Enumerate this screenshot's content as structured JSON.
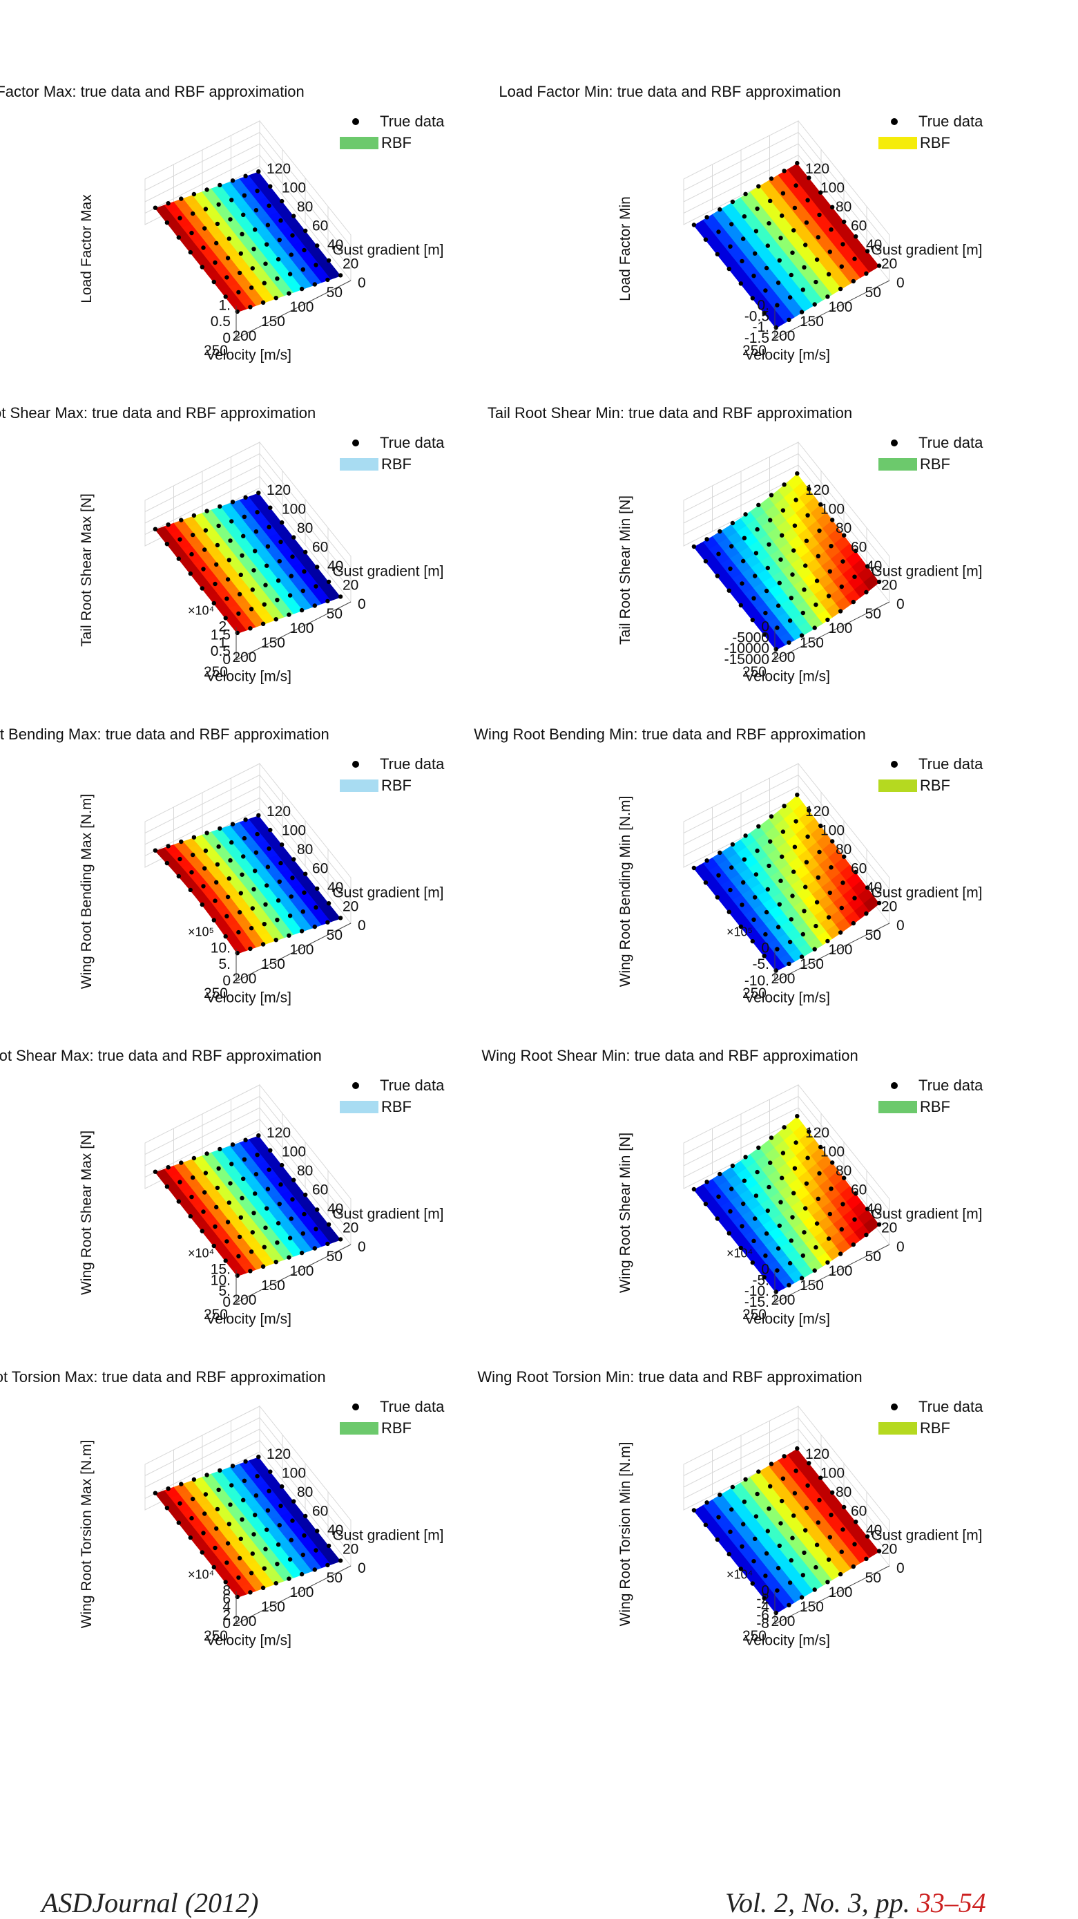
{
  "chart_data": [
    {
      "type": "surface3d",
      "title": "Load Factor Max: true data and RBF approximation",
      "zlabel": "Load Factor Max",
      "zticks": [
        "1.",
        "0.5",
        "0"
      ],
      "exponent": "",
      "zlim": [
        0,
        1.2
      ],
      "xlabel": "Velocity [m/s]",
      "xticks": [
        "250",
        "200",
        "150",
        "100",
        "50"
      ],
      "ylabel": "Gust gradient [m]",
      "yticks": [
        "0",
        "20",
        "40",
        "60",
        "80",
        "100",
        "120"
      ],
      "legend": {
        "true_data": "True data",
        "rbf": "RBF",
        "rbf_color": "#6cc96c"
      },
      "colormap": "max",
      "shape": "flat"
    },
    {
      "type": "surface3d",
      "title": "Load Factor Min: true data and RBF approximation",
      "zlabel": "Load Factor Min",
      "zticks": [
        "0.",
        "-0.5",
        "-1.",
        "-1.5"
      ],
      "exponent": "",
      "zlim": [
        -1.5,
        0
      ],
      "xlabel": "Velocity [m/s]",
      "xticks": [
        "250",
        "200",
        "150",
        "100",
        "50"
      ],
      "ylabel": "Gust gradient [m]",
      "yticks": [
        "0",
        "20",
        "40",
        "60",
        "80",
        "100",
        "120"
      ],
      "legend": {
        "true_data": "True data",
        "rbf": "RBF",
        "rbf_color": "#f5ec0a"
      },
      "colormap": "min",
      "shape": "flat"
    },
    {
      "type": "surface3d",
      "title": "Tail Root Shear Max: true data and RBF approximation",
      "zlabel": "Tail Root Shear Max [N]",
      "zticks": [
        "2.",
        "1.5",
        "1.",
        "0.5",
        "0"
      ],
      "exponent": "×10⁴",
      "zlim": [
        0,
        20000
      ],
      "xlabel": "Velocity [m/s]",
      "xticks": [
        "250",
        "200",
        "150",
        "100",
        "50"
      ],
      "ylabel": "Gust gradient [m]",
      "yticks": [
        "0",
        "20",
        "40",
        "60",
        "80",
        "100",
        "120"
      ],
      "legend": {
        "true_data": "True data",
        "rbf": "RBF",
        "rbf_color": "#a8dcf2"
      },
      "colormap": "max",
      "shape": "flat"
    },
    {
      "type": "surface3d",
      "title": "Tail Root Shear Min: true data and RBF approximation",
      "zlabel": "Tail Root Shear Min [N]",
      "zticks": [
        "0",
        "-5000",
        "-10000",
        "-15000"
      ],
      "exponent": "",
      "zlim": [
        -15000,
        0
      ],
      "xlabel": "Velocity [m/s]",
      "xticks": [
        "250",
        "200",
        "150",
        "100",
        "50"
      ],
      "ylabel": "Gust gradient [m]",
      "yticks": [
        "0",
        "20",
        "40",
        "60",
        "80",
        "100",
        "120"
      ],
      "legend": {
        "true_data": "True data",
        "rbf": "RBF",
        "rbf_color": "#6cc96c"
      },
      "colormap": "min",
      "shape": "curved"
    },
    {
      "type": "surface3d",
      "title": "Wing Root Bending Max: true data and RBF approximation",
      "zlabel": "Wing Root Bending Max [N.m]",
      "zticks": [
        "10.",
        "5.",
        "0"
      ],
      "exponent": "×10⁵",
      "zlim": [
        0,
        1000000
      ],
      "xlabel": "Velocity [m/s]",
      "xticks": [
        "250",
        "200",
        "150",
        "100",
        "50"
      ],
      "ylabel": "Gust gradient [m]",
      "yticks": [
        "0",
        "20",
        "40",
        "60",
        "80",
        "100",
        "120"
      ],
      "legend": {
        "true_data": "True data",
        "rbf": "RBF",
        "rbf_color": "#a8dcf2"
      },
      "colormap": "max",
      "shape": "curved"
    },
    {
      "type": "surface3d",
      "title": "Wing Root Bending Min: true data and RBF approximation",
      "zlabel": "Wing Root Bending Min [N.m]",
      "zticks": [
        "0",
        "-5.",
        "-10."
      ],
      "exponent": "×10⁵",
      "zlim": [
        -1000000,
        0
      ],
      "xlabel": "Velocity [m/s]",
      "xticks": [
        "250",
        "200",
        "150",
        "100",
        "50"
      ],
      "ylabel": "Gust gradient [m]",
      "yticks": [
        "0",
        "20",
        "40",
        "60",
        "80",
        "100",
        "120"
      ],
      "legend": {
        "true_data": "True data",
        "rbf": "RBF",
        "rbf_color": "#b5d920"
      },
      "colormap": "min",
      "shape": "curved"
    },
    {
      "type": "surface3d",
      "title": "Wing Root Shear Max: true data and RBF approximation",
      "zlabel": "Wing Root Shear Max [N]",
      "zticks": [
        "15.",
        "10.",
        "5.",
        "0"
      ],
      "exponent": "×10⁴",
      "zlim": [
        0,
        150000
      ],
      "xlabel": "Velocity [m/s]",
      "xticks": [
        "250",
        "200",
        "150",
        "100",
        "50"
      ],
      "ylabel": "Gust gradient [m]",
      "yticks": [
        "0",
        "20",
        "40",
        "60",
        "80",
        "100",
        "120"
      ],
      "legend": {
        "true_data": "True data",
        "rbf": "RBF",
        "rbf_color": "#a8dcf2"
      },
      "colormap": "max",
      "shape": "flat"
    },
    {
      "type": "surface3d",
      "title": "Wing Root Shear Min: true data and RBF approximation",
      "zlabel": "Wing Root Shear Min [N]",
      "zticks": [
        "0",
        "-5.",
        "-10.",
        "-15."
      ],
      "exponent": "×10⁴",
      "zlim": [
        -150000,
        0
      ],
      "xlabel": "Velocity [m/s]",
      "xticks": [
        "250",
        "200",
        "150",
        "100",
        "50"
      ],
      "ylabel": "Gust gradient [m]",
      "yticks": [
        "0",
        "20",
        "40",
        "60",
        "80",
        "100",
        "120"
      ],
      "legend": {
        "true_data": "True data",
        "rbf": "RBF",
        "rbf_color": "#6cc96c"
      },
      "colormap": "min",
      "shape": "curved"
    },
    {
      "type": "surface3d",
      "title": "Wing Root Torsion Max: true data and RBF approximation",
      "zlabel": "Wing Root Torsion Max [N.m]",
      "zticks": [
        "8",
        "6",
        "4",
        "2",
        "0"
      ],
      "exponent": "×10⁴",
      "zlim": [
        0,
        80000
      ],
      "xlabel": "Velocity [m/s]",
      "xticks": [
        "250",
        "200",
        "150",
        "100",
        "50"
      ],
      "ylabel": "Gust gradient [m]",
      "yticks": [
        "0",
        "20",
        "40",
        "60",
        "80",
        "100",
        "120"
      ],
      "legend": {
        "true_data": "True data",
        "rbf": "RBF",
        "rbf_color": "#6cc96c"
      },
      "colormap": "max",
      "shape": "flat"
    },
    {
      "type": "surface3d",
      "title": "Wing Root Torsion Min: true data and RBF approximation",
      "zlabel": "Wing Root Torsion Min [N.m]",
      "zticks": [
        "0",
        "-2",
        "-4",
        "-6",
        "-8"
      ],
      "exponent": "×10⁴",
      "zlim": [
        -80000,
        0
      ],
      "xlabel": "Velocity [m/s]",
      "xticks": [
        "250",
        "200",
        "150",
        "100",
        "50"
      ],
      "ylabel": "Gust gradient [m]",
      "yticks": [
        "0",
        "20",
        "40",
        "60",
        "80",
        "100",
        "120"
      ],
      "legend": {
        "true_data": "True data",
        "rbf": "RBF",
        "rbf_color": "#b5d920"
      },
      "colormap": "min",
      "shape": "flat"
    }
  ],
  "footer": {
    "journal": "ASDJournal (2012)",
    "volume_prefix": "Vol. 2, No. 3, pp.",
    "pages": "33–54"
  }
}
